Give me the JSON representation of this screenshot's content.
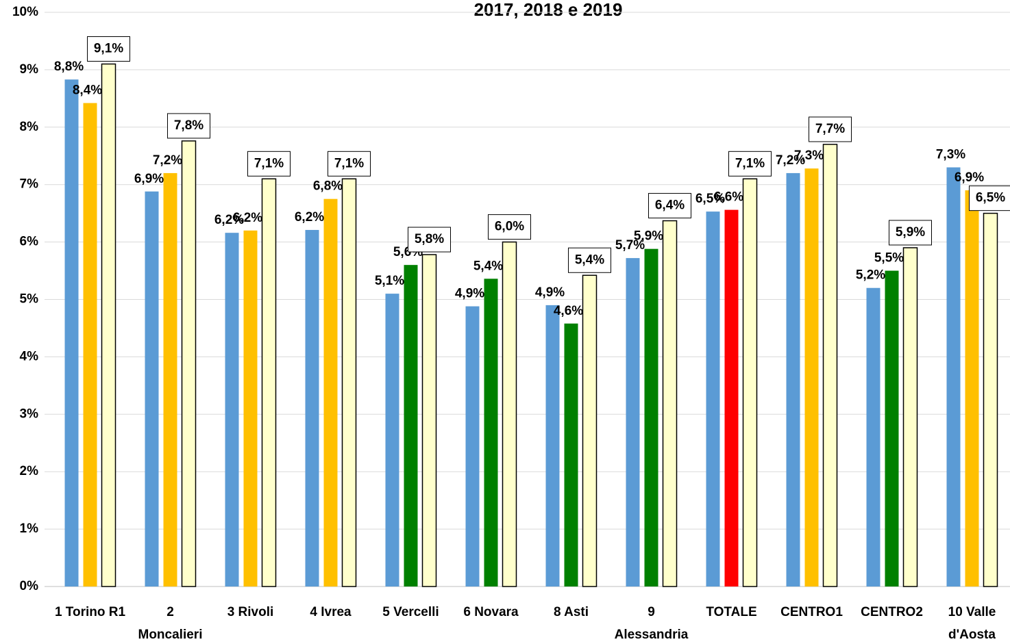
{
  "chart_data": {
    "type": "bar",
    "title": "2017, 2018 e 2019",
    "categories": [
      [
        "1 Torino R1"
      ],
      [
        "2",
        "Moncalieri"
      ],
      [
        "3 Rivoli"
      ],
      [
        "4 Ivrea"
      ],
      [
        "5 Vercelli"
      ],
      [
        "6 Novara"
      ],
      [
        "8 Asti"
      ],
      [
        "9",
        "Alessandria"
      ],
      [
        "TOTALE"
      ],
      [
        "CENTRO1"
      ],
      [
        "CENTRO2"
      ],
      [
        "10 Valle",
        "d'Aosta"
      ]
    ],
    "series": [
      {
        "color": "#5b9bd5",
        "values": [
          8.83,
          6.88,
          6.16,
          6.21,
          5.1,
          4.88,
          4.9,
          5.72,
          6.53,
          7.2,
          5.2,
          7.3
        ],
        "value_labels": [
          "8,8%",
          "6,9%",
          "6,2%",
          "6,2%",
          "5,1%",
          "4,9%",
          "4,9%",
          "5,7%",
          "6,5%",
          "7,2%",
          "5,2%",
          "7,3%"
        ]
      },
      {
        "color": [
          "#ffc000",
          "#ffc000",
          "#ffc000",
          "#ffc000",
          "#008000",
          "#008000",
          "#008000",
          "#008000",
          "#ff0000",
          "#ffc000",
          "#008000",
          "#ffc000"
        ],
        "values": [
          8.42,
          7.2,
          6.2,
          6.75,
          5.6,
          5.36,
          4.58,
          5.88,
          6.56,
          7.28,
          5.5,
          6.9
        ],
        "value_labels": [
          "8,4%",
          "7,2%",
          "6,2%",
          "6,8%",
          "5,6%",
          "5,4%",
          "4,6%",
          "5,9%",
          "6,6%",
          "7,3%",
          "5,5%",
          "6,9%"
        ]
      },
      {
        "color": "#ffffcc",
        "boxed_labels": true,
        "values": [
          9.1,
          7.76,
          7.1,
          7.1,
          5.78,
          6.0,
          5.42,
          6.37,
          7.1,
          7.7,
          5.9,
          6.5
        ],
        "value_labels": [
          "9,1%",
          "7,8%",
          "7,1%",
          "7,1%",
          "5,8%",
          "6,0%",
          "5,4%",
          "6,4%",
          "7,1%",
          "7,7%",
          "5,9%",
          "6,5%"
        ]
      }
    ],
    "ylim": [
      0,
      10
    ],
    "yticks": [
      {
        "value": 0,
        "label": "0%"
      },
      {
        "value": 1,
        "label": "1%"
      },
      {
        "value": 2,
        "label": "2%"
      },
      {
        "value": 3,
        "label": "3%"
      },
      {
        "value": 4,
        "label": "4%"
      },
      {
        "value": 5,
        "label": "5%"
      },
      {
        "value": 6,
        "label": "6%"
      },
      {
        "value": 7,
        "label": "7%"
      },
      {
        "value": 8,
        "label": "8%"
      },
      {
        "value": 9,
        "label": "9%"
      },
      {
        "value": 10,
        "label": "10%"
      }
    ],
    "grid": true
  }
}
